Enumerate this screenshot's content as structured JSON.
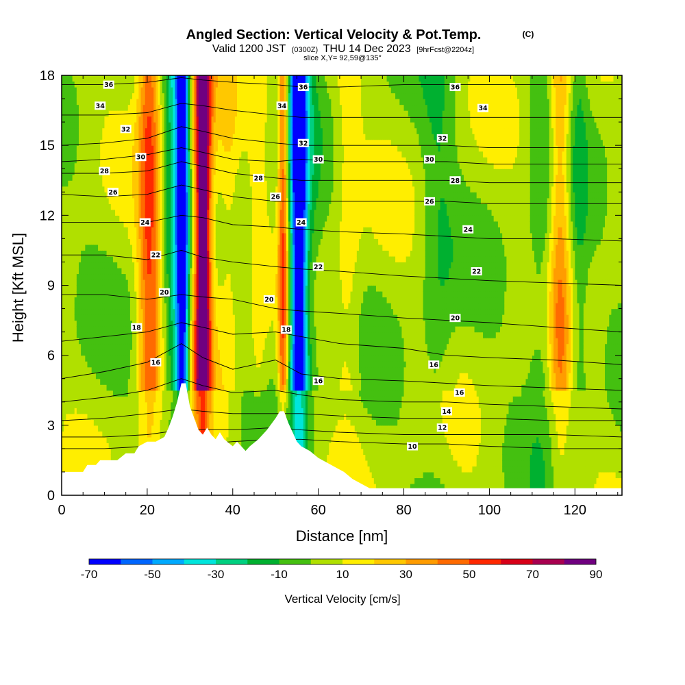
{
  "title": {
    "main": "Angled Section: Vertical Velocity & Pot.Temp.",
    "copyright": "(C)",
    "valid_prefix": "Valid 1200 JST",
    "valid_utc": "(0300Z)",
    "valid_date": "THU 14 Dec 2023",
    "forecast": "[9hrFcst@2204z]",
    "slice": "slice X,Y= 92,59@135°"
  },
  "chart_data": {
    "type": "heatmap",
    "xlabel": "Distance [nm]",
    "ylabel": "Height [Kft MSL]",
    "xlim": [
      0,
      131
    ],
    "ylim": [
      0,
      18
    ],
    "x_ticks": [
      0,
      20,
      40,
      60,
      80,
      100,
      120
    ],
    "y_ticks": [
      0,
      3,
      6,
      9,
      12,
      15,
      18
    ],
    "colorbar": {
      "title": "Vertical Velocity [cm/s]",
      "tick_labels": [
        "-70",
        "-50",
        "-30",
        "-10",
        "10",
        "30",
        "50",
        "70",
        "90"
      ],
      "levels": [
        -70,
        -60,
        -50,
        -40,
        -30,
        -20,
        -10,
        0,
        10,
        20,
        30,
        40,
        50,
        60,
        70,
        80,
        90
      ],
      "colors": [
        "#0000ff",
        "#0066ff",
        "#00aaff",
        "#00e5dc",
        "#00d080",
        "#00b030",
        "#44c010",
        "#b0e000",
        "#ffee00",
        "#ffc800",
        "#ff9c00",
        "#ff6a00",
        "#ff2800",
        "#d80018",
        "#a80050",
        "#700080"
      ]
    },
    "velocity_features": [
      {
        "x": 20.5,
        "width": 2.6,
        "value": 45
      },
      {
        "x": 28.3,
        "width": 1.4,
        "value": -60
      },
      {
        "x": 27.0,
        "width": 2.8,
        "value": -35
      },
      {
        "x": 33.0,
        "width": 1.6,
        "value": 75
      },
      {
        "x": 33.0,
        "width": 3.4,
        "value": 30
      },
      {
        "x": 39.0,
        "width": 2.2,
        "value": 12
      },
      {
        "x": 46.0,
        "width": 2.0,
        "value": 10
      },
      {
        "x": 51.8,
        "width": 1.2,
        "value": 50
      },
      {
        "x": 55.5,
        "width": 1.6,
        "value": -65
      },
      {
        "x": 55.5,
        "width": 3.6,
        "value": -30
      },
      {
        "x": 67.0,
        "width": 3.0,
        "value": 12
      },
      {
        "x": 88.0,
        "width": 4.0,
        "value": -12
      },
      {
        "x": 112.0,
        "width": 3.0,
        "value": -12
      },
      {
        "x": 116.5,
        "width": 2.4,
        "value": 30
      },
      {
        "x": 121.0,
        "width": 2.0,
        "value": -12
      }
    ],
    "terrain": [
      [
        0,
        1.0
      ],
      [
        5,
        1.0
      ],
      [
        6,
        1.3
      ],
      [
        8,
        1.3
      ],
      [
        9,
        1.5
      ],
      [
        13,
        1.5
      ],
      [
        15,
        1.8
      ],
      [
        17,
        1.8
      ],
      [
        18,
        2.1
      ],
      [
        20,
        2.3
      ],
      [
        22,
        2.3
      ],
      [
        24,
        2.5
      ],
      [
        25,
        2.9
      ],
      [
        26,
        3.4
      ],
      [
        27,
        4.0
      ],
      [
        28,
        4.8
      ],
      [
        29,
        4.8
      ],
      [
        30,
        3.8
      ],
      [
        31,
        3.3
      ],
      [
        32,
        2.8
      ],
      [
        33,
        2.6
      ],
      [
        34,
        2.9
      ],
      [
        35,
        2.6
      ],
      [
        36,
        2.4
      ],
      [
        37,
        2.7
      ],
      [
        38,
        2.4
      ],
      [
        40,
        2.1
      ],
      [
        41,
        2.3
      ],
      [
        42,
        2.1
      ],
      [
        43,
        1.9
      ],
      [
        44,
        2.1
      ],
      [
        46,
        2.4
      ],
      [
        48,
        2.8
      ],
      [
        50,
        3.3
      ],
      [
        51,
        3.6
      ],
      [
        52,
        3.6
      ],
      [
        53,
        3.1
      ],
      [
        54,
        2.7
      ],
      [
        55,
        2.3
      ],
      [
        56,
        2.1
      ],
      [
        58,
        1.9
      ],
      [
        60,
        1.6
      ],
      [
        62,
        1.4
      ],
      [
        64,
        1.2
      ],
      [
        66,
        1.0
      ],
      [
        68,
        0.7
      ],
      [
        70,
        0.5
      ],
      [
        72,
        0.3
      ],
      [
        131,
        0.3
      ]
    ],
    "pot_temp_contours": [
      {
        "label": "10",
        "y": [
          2.0,
          2.0,
          2.1,
          2.2,
          2.2,
          2.3,
          2.4,
          2.4,
          2.3,
          2.2,
          2.2,
          2.1,
          2.0,
          2.0
        ]
      },
      {
        "label": "12",
        "y": [
          2.5,
          2.5,
          2.6,
          2.8,
          2.8,
          2.8,
          2.9,
          2.8,
          2.7,
          2.6,
          2.6,
          2.6,
          2.6,
          2.5
        ]
      },
      {
        "label": "14",
        "y": [
          3.2,
          3.3,
          3.5,
          3.7,
          3.6,
          3.5,
          3.5,
          3.5,
          3.4,
          3.3,
          3.3,
          3.3,
          3.2,
          3.2
        ]
      },
      {
        "label": "16",
        "y": [
          4.0,
          4.2,
          4.5,
          5.0,
          4.7,
          4.4,
          4.5,
          4.3,
          4.1,
          4.0,
          4.0,
          3.9,
          3.8,
          3.7
        ]
      },
      {
        "label": "16",
        "y": [
          5.0,
          5.3,
          5.7,
          6.5,
          5.9,
          5.4,
          5.8,
          5.2,
          5.0,
          4.9,
          4.8,
          4.7,
          4.6,
          4.5
        ]
      },
      {
        "label": "18",
        "y": [
          6.6,
          6.8,
          7.0,
          7.4,
          7.2,
          6.9,
          7.0,
          6.8,
          6.5,
          6.3,
          6.0,
          5.9,
          5.8,
          5.6
        ]
      },
      {
        "label": "20",
        "y": [
          8.6,
          8.6,
          8.4,
          8.6,
          8.5,
          8.4,
          8.0,
          7.9,
          7.8,
          7.6,
          7.5,
          7.4,
          7.2,
          7.0
        ]
      },
      {
        "label": "22",
        "y": [
          10.3,
          10.3,
          10.1,
          10.5,
          10.2,
          10.0,
          9.8,
          9.7,
          9.6,
          9.4,
          9.3,
          9.2,
          9.1,
          9.0
        ]
      },
      {
        "label": "24",
        "y": [
          11.7,
          11.7,
          11.7,
          12.0,
          11.9,
          11.6,
          11.5,
          11.4,
          11.3,
          11.2,
          11.1,
          11.0,
          11.0,
          10.9
        ]
      },
      {
        "label": "26",
        "y": [
          12.9,
          12.8,
          12.9,
          13.3,
          13.1,
          12.8,
          12.6,
          12.6,
          12.6,
          12.6,
          12.6,
          12.5,
          12.5,
          12.5
        ]
      },
      {
        "label": "28",
        "y": [
          13.8,
          13.8,
          13.9,
          14.3,
          14.1,
          13.8,
          13.6,
          13.5,
          13.5,
          13.5,
          13.5,
          13.4,
          13.4,
          13.4
        ]
      },
      {
        "label": "30",
        "y": [
          14.3,
          14.4,
          14.6,
          14.9,
          14.7,
          14.4,
          14.3,
          14.4,
          14.3,
          14.3,
          14.3,
          14.2,
          14.2,
          14.2
        ]
      },
      {
        "label": "32",
        "y": [
          15.0,
          15.1,
          15.3,
          15.8,
          15.6,
          15.3,
          15.1,
          15.0,
          15.0,
          15.0,
          15.0,
          14.9,
          14.9,
          14.9
        ]
      },
      {
        "label": "34",
        "y": [
          16.3,
          16.3,
          16.4,
          16.8,
          16.7,
          16.5,
          16.3,
          16.2,
          16.2,
          16.2,
          16.2,
          16.2,
          16.2,
          16.2
        ]
      },
      {
        "label": "36",
        "y": [
          17.6,
          17.6,
          17.7,
          17.9,
          17.8,
          17.7,
          17.6,
          17.5,
          17.5,
          17.6,
          17.6,
          17.6,
          17.6,
          17.6
        ]
      }
    ],
    "contour_x": [
      0,
      10,
      20,
      28,
      33,
      40,
      50,
      56,
      65,
      80,
      90,
      100,
      115,
      131
    ],
    "contour_labels": [
      {
        "text": "36",
        "x": 11,
        "y": 17.6
      },
      {
        "text": "34",
        "x": 9,
        "y": 16.7
      },
      {
        "text": "32",
        "x": 15,
        "y": 15.7
      },
      {
        "text": "30",
        "x": 18.5,
        "y": 14.5
      },
      {
        "text": "28",
        "x": 10,
        "y": 13.9
      },
      {
        "text": "26",
        "x": 12,
        "y": 13.0
      },
      {
        "text": "24",
        "x": 19.5,
        "y": 11.7
      },
      {
        "text": "22",
        "x": 22,
        "y": 10.3
      },
      {
        "text": "20",
        "x": 24,
        "y": 8.7
      },
      {
        "text": "18",
        "x": 17.5,
        "y": 7.2
      },
      {
        "text": "16",
        "x": 22,
        "y": 5.7
      },
      {
        "text": "36",
        "x": 56.5,
        "y": 17.5
      },
      {
        "text": "34",
        "x": 51.5,
        "y": 16.7
      },
      {
        "text": "32",
        "x": 56.5,
        "y": 15.1
      },
      {
        "text": "30",
        "x": 60,
        "y": 14.4
      },
      {
        "text": "28",
        "x": 46,
        "y": 13.6
      },
      {
        "text": "26",
        "x": 50,
        "y": 12.8
      },
      {
        "text": "24",
        "x": 56,
        "y": 11.7
      },
      {
        "text": "22",
        "x": 60,
        "y": 9.8
      },
      {
        "text": "20",
        "x": 48.5,
        "y": 8.4
      },
      {
        "text": "18",
        "x": 52.5,
        "y": 7.1
      },
      {
        "text": "16",
        "x": 60,
        "y": 4.9
      },
      {
        "text": "36",
        "x": 92,
        "y": 17.5
      },
      {
        "text": "34",
        "x": 98.5,
        "y": 16.6
      },
      {
        "text": "32",
        "x": 89,
        "y": 15.3
      },
      {
        "text": "30",
        "x": 86,
        "y": 14.4
      },
      {
        "text": "28",
        "x": 92,
        "y": 13.5
      },
      {
        "text": "26",
        "x": 86,
        "y": 12.6
      },
      {
        "text": "24",
        "x": 95,
        "y": 11.4
      },
      {
        "text": "22",
        "x": 97,
        "y": 9.6
      },
      {
        "text": "20",
        "x": 92,
        "y": 7.6
      },
      {
        "text": "16",
        "x": 87,
        "y": 5.6
      },
      {
        "text": "16",
        "x": 93,
        "y": 4.4
      },
      {
        "text": "14",
        "x": 90,
        "y": 3.6
      },
      {
        "text": "12",
        "x": 89,
        "y": 2.9
      },
      {
        "text": "10",
        "x": 82,
        "y": 2.1
      }
    ]
  }
}
